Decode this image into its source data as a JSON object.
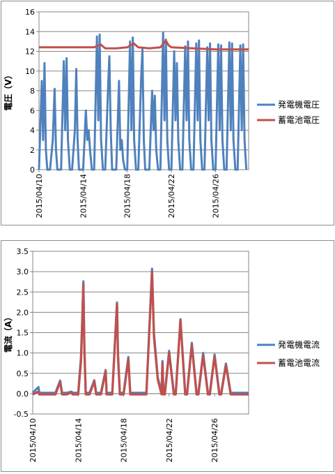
{
  "chart_data": [
    {
      "type": "line",
      "ylabel": "電圧（V）",
      "xlabel": "",
      "ylim": [
        0,
        16
      ],
      "yticks": [
        0,
        2,
        4,
        6,
        8,
        10,
        12,
        14,
        16
      ],
      "xlim": [
        "2015/04/10",
        "2015/04/29"
      ],
      "xticks": [
        "2015/04/10",
        "2015/04/14",
        "2015/04/18",
        "2015/04/22",
        "2015/04/26"
      ],
      "grid": true,
      "legend_position": "right",
      "series": [
        {
          "name": "発電機電圧",
          "color": "#4f81bd",
          "x": [
            "2015/04/10",
            "2015/04/10 06:00",
            "2015/04/10 09:00",
            "2015/04/10 12:00",
            "2015/04/10 15:00",
            "2015/04/10 18:00",
            "2015/04/11",
            "2015/04/11 06:00",
            "2015/04/11 10:00",
            "2015/04/11 13:00",
            "2015/04/11 16:00",
            "2015/04/11 19:00",
            "2015/04/12",
            "2015/04/12 06:00",
            "2015/04/12 09:00",
            "2015/04/12 12:00",
            "2015/04/12 15:00",
            "2015/04/12 19:00",
            "2015/04/13",
            "2015/04/13 06:00",
            "2015/04/13 09:00",
            "2015/04/13 12:00",
            "2015/04/13 15:00",
            "2015/04/13 19:00",
            "2015/04/14",
            "2015/04/14 06:00",
            "2015/04/14 09:00",
            "2015/04/14 12:00",
            "2015/04/14 15:00",
            "2015/04/14 19:00",
            "2015/04/15",
            "2015/04/15 06:00",
            "2015/04/15 09:00",
            "2015/04/15 12:00",
            "2015/04/15 15:00",
            "2015/04/15 19:00",
            "2015/04/16",
            "2015/04/16 06:00",
            "2015/04/16 09:00",
            "2015/04/16 12:00",
            "2015/04/16 15:00",
            "2015/04/16 19:00",
            "2015/04/17",
            "2015/04/17 06:00",
            "2015/04/17 09:00",
            "2015/04/17 12:00",
            "2015/04/17 15:00",
            "2015/04/17 19:00",
            "2015/04/18",
            "2015/04/18 06:00",
            "2015/04/18 09:00",
            "2015/04/18 12:00",
            "2015/04/18 15:00",
            "2015/04/18 19:00",
            "2015/04/19",
            "2015/04/19 06:00",
            "2015/04/19 09:00",
            "2015/04/19 12:00",
            "2015/04/19 15:00",
            "2015/04/19 19:00",
            "2015/04/20",
            "2015/04/20 06:00",
            "2015/04/20 09:00",
            "2015/04/20 12:00",
            "2015/04/20 15:00",
            "2015/04/20 19:00",
            "2015/04/21",
            "2015/04/21 06:00",
            "2015/04/21 09:00",
            "2015/04/21 12:00",
            "2015/04/21 15:00",
            "2015/04/21 19:00",
            "2015/04/22",
            "2015/04/22 06:00",
            "2015/04/22 09:00",
            "2015/04/22 12:00",
            "2015/04/22 15:00",
            "2015/04/22 19:00",
            "2015/04/23",
            "2015/04/23 06:00",
            "2015/04/23 09:00",
            "2015/04/23 12:00",
            "2015/04/23 15:00",
            "2015/04/23 19:00",
            "2015/04/24",
            "2015/04/24 06:00",
            "2015/04/24 09:00",
            "2015/04/24 12:00",
            "2015/04/24 15:00",
            "2015/04/24 19:00",
            "2015/04/25",
            "2015/04/25 06:00",
            "2015/04/25 09:00",
            "2015/04/25 12:00",
            "2015/04/25 15:00",
            "2015/04/25 19:00",
            "2015/04/26",
            "2015/04/26 06:00",
            "2015/04/26 09:00",
            "2015/04/26 12:00",
            "2015/04/26 15:00",
            "2015/04/26 19:00",
            "2015/04/27",
            "2015/04/27 06:00",
            "2015/04/27 09:00",
            "2015/04/27 12:00",
            "2015/04/27 15:00",
            "2015/04/27 19:00",
            "2015/04/28",
            "2015/04/28 06:00",
            "2015/04/28 09:00",
            "2015/04/28 12:00",
            "2015/04/28 15:00",
            "2015/04/28 19:00"
          ],
          "y": [
            0,
            9,
            3,
            10.8,
            2,
            0,
            0,
            3,
            8.2,
            2,
            0,
            0,
            0,
            11,
            4,
            11.3,
            3,
            0,
            0,
            4,
            10.2,
            3,
            0,
            0,
            0,
            6,
            3,
            4,
            2,
            0,
            0,
            13.5,
            5,
            13.7,
            3,
            0,
            0,
            8,
            11.5,
            4,
            0,
            0,
            0,
            9,
            2,
            3,
            1,
            0,
            0,
            13,
            4,
            13.4,
            3,
            0,
            0,
            9,
            12.2,
            3,
            0,
            0,
            0,
            8,
            4,
            7.5,
            2,
            0,
            0,
            13.9,
            5,
            13.2,
            3,
            0,
            0,
            12,
            5,
            10.8,
            3,
            0,
            0,
            12.5,
            5,
            13,
            3,
            0,
            0,
            12.8,
            5,
            13.1,
            3,
            0,
            0,
            12.4,
            5,
            12.8,
            3,
            0,
            0,
            12.7,
            4,
            12.6,
            3,
            0,
            0,
            12.9,
            4,
            12.8,
            3,
            0,
            0,
            12.6,
            4,
            12.7,
            3,
            0
          ]
        },
        {
          "name": "蓄電池電圧",
          "color": "#c0504d",
          "x": [
            "2015/04/10",
            "2015/04/13",
            "2015/04/15",
            "2015/04/15 14:00",
            "2015/04/16",
            "2015/04/17",
            "2015/04/18",
            "2015/04/18 14:00",
            "2015/04/19",
            "2015/04/20",
            "2015/04/21",
            "2015/04/21 12:00",
            "2015/04/21 18:00",
            "2015/04/22",
            "2015/04/24",
            "2015/04/26",
            "2015/04/28",
            "2015/04/29"
          ],
          "y": [
            12.4,
            12.4,
            12.4,
            12.7,
            12.3,
            12.3,
            12.4,
            12.8,
            12.4,
            12.3,
            12.4,
            13.1,
            12.6,
            12.4,
            12.3,
            12.2,
            12.2,
            12.2
          ]
        }
      ]
    },
    {
      "type": "line",
      "ylabel": "電流（A）",
      "xlabel": "",
      "ylim": [
        -0.5,
        3.5
      ],
      "yticks": [
        -0.5,
        0.0,
        0.5,
        1.0,
        1.5,
        2.0,
        2.5,
        3.0,
        3.5
      ],
      "xlim": [
        "2015/04/10",
        "2015/04/29"
      ],
      "xticks": [
        "2015/04/10",
        "2015/04/14",
        "2015/04/18",
        "2015/04/22",
        "2015/04/26"
      ],
      "grid": true,
      "legend_position": "right",
      "series": [
        {
          "name": "発電機電流",
          "color": "#4f81bd",
          "x": [
            "2015/04/10",
            "2015/04/10 12:00",
            "2015/04/10 14:00",
            "2015/04/11",
            "2015/04/12",
            "2015/04/12 10:00",
            "2015/04/12 14:00",
            "2015/04/13",
            "2015/04/13 10:00",
            "2015/04/13 12:00",
            "2015/04/14",
            "2015/04/14 06:00",
            "2015/04/14 09:00",
            "2015/04/14 11:00",
            "2015/04/14 13:00",
            "2015/04/14 16:00",
            "2015/04/15",
            "2015/04/15 10:00",
            "2015/04/15 14:00",
            "2015/04/16",
            "2015/04/16 10:00",
            "2015/04/16 12:00",
            "2015/04/17",
            "2015/04/17 10:00",
            "2015/04/17 12:00",
            "2015/04/17 16:00",
            "2015/04/18",
            "2015/04/18 10:00",
            "2015/04/18 14:00",
            "2015/04/19",
            "2015/04/20",
            "2015/04/20 12:00",
            "2015/04/20 16:00",
            "2015/04/21",
            "2015/04/21 08:00",
            "2015/04/21 10:00",
            "2015/04/21 12:00",
            "2015/04/21 15:00",
            "2015/04/22",
            "2015/04/22 10:00",
            "2015/04/22 14:00",
            "2015/04/23",
            "2015/04/23 10:00",
            "2015/04/23 14:00",
            "2015/04/24",
            "2015/04/24 10:00",
            "2015/04/24 14:00",
            "2015/04/25",
            "2015/04/25 10:00",
            "2015/04/25 14:00",
            "2015/04/26",
            "2015/04/26 10:00",
            "2015/04/26 14:00",
            "2015/04/27",
            "2015/04/27 10:00",
            "2015/04/27 14:00",
            "2015/04/28",
            "2015/04/28 10:00",
            "2015/04/28 14:00",
            "2015/04/29"
          ],
          "y": [
            0.02,
            0.16,
            0.02,
            0.02,
            0.02,
            0.32,
            0.02,
            0.02,
            0.05,
            0.02,
            0.02,
            0.9,
            2.0,
            2.76,
            1.2,
            0.02,
            0.02,
            0.33,
            0.02,
            0.02,
            0.58,
            0.02,
            0.02,
            2.24,
            1.0,
            0.02,
            0.02,
            0.9,
            0.02,
            0.02,
            0.02,
            3.07,
            1.5,
            0.4,
            0.02,
            0.8,
            0.02,
            0.02,
            1.05,
            0.02,
            0.02,
            1.83,
            0.02,
            0.02,
            1.25,
            0.02,
            0.02,
            1.0,
            0.02,
            0.02,
            0.96,
            0.02,
            0.02,
            0.74,
            0.02,
            0.02,
            0.02,
            0.02,
            0.02,
            0.02
          ]
        },
        {
          "name": "蓄電池電流",
          "color": "#c0504d",
          "x": [
            "2015/04/10",
            "2015/04/10 12:00",
            "2015/04/10 14:00",
            "2015/04/11",
            "2015/04/12",
            "2015/04/12 10:00",
            "2015/04/12 14:00",
            "2015/04/13",
            "2015/04/13 10:00",
            "2015/04/13 12:00",
            "2015/04/14",
            "2015/04/14 06:00",
            "2015/04/14 09:00",
            "2015/04/14 11:00",
            "2015/04/14 13:00",
            "2015/04/14 16:00",
            "2015/04/15",
            "2015/04/15 10:00",
            "2015/04/15 14:00",
            "2015/04/16",
            "2015/04/16 10:00",
            "2015/04/16 12:00",
            "2015/04/17",
            "2015/04/17 10:00",
            "2015/04/17 12:00",
            "2015/04/17 16:00",
            "2015/04/18",
            "2015/04/18 10:00",
            "2015/04/18 14:00",
            "2015/04/19",
            "2015/04/20",
            "2015/04/20 12:00",
            "2015/04/20 16:00",
            "2015/04/21",
            "2015/04/21 08:00",
            "2015/04/21 10:00",
            "2015/04/21 12:00",
            "2015/04/21 15:00",
            "2015/04/22",
            "2015/04/22 10:00",
            "2015/04/22 14:00",
            "2015/04/23",
            "2015/04/23 10:00",
            "2015/04/23 14:00",
            "2015/04/24",
            "2015/04/24 10:00",
            "2015/04/24 14:00",
            "2015/04/25",
            "2015/04/25 10:00",
            "2015/04/25 14:00",
            "2015/04/26",
            "2015/04/26 10:00",
            "2015/04/26 14:00",
            "2015/04/27",
            "2015/04/27 10:00",
            "2015/04/27 14:00",
            "2015/04/28",
            "2015/04/28 10:00",
            "2015/04/28 14:00",
            "2015/04/29"
          ],
          "y": [
            -0.02,
            0.05,
            -0.02,
            -0.02,
            -0.02,
            0.29,
            -0.02,
            -0.02,
            0.03,
            -0.02,
            -0.02,
            0.8,
            1.9,
            2.7,
            1.1,
            -0.02,
            -0.02,
            0.3,
            -0.02,
            -0.02,
            0.55,
            -0.02,
            -0.02,
            2.2,
            0.9,
            -0.02,
            -0.02,
            0.85,
            -0.02,
            -0.02,
            -0.02,
            3.0,
            1.4,
            0.35,
            -0.02,
            0.75,
            -0.02,
            -0.02,
            1.0,
            -0.02,
            -0.02,
            1.8,
            -0.02,
            -0.02,
            1.2,
            -0.02,
            -0.02,
            0.95,
            -0.02,
            -0.02,
            0.92,
            -0.02,
            -0.02,
            0.7,
            -0.02,
            -0.02,
            -0.02,
            -0.02,
            -0.02,
            -0.02
          ]
        }
      ]
    }
  ]
}
